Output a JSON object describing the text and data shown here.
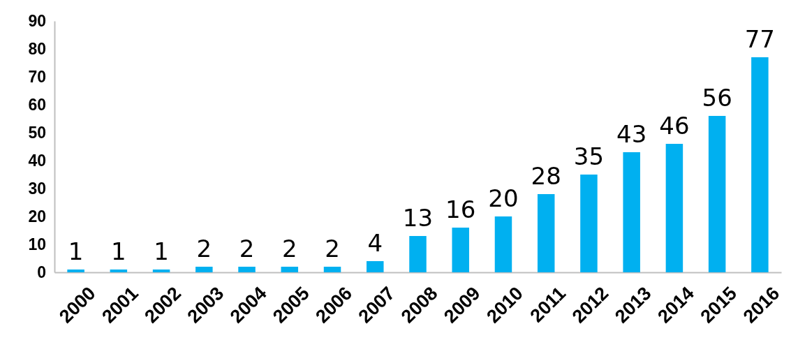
{
  "chart_data": {
    "type": "bar",
    "categories": [
      "2000",
      "2001",
      "2002",
      "2003",
      "2004",
      "2005",
      "2006",
      "2007",
      "2008",
      "2009",
      "2010",
      "2011",
      "2012",
      "2013",
      "2014",
      "2015",
      "2016"
    ],
    "values": [
      1,
      1,
      1,
      2,
      2,
      2,
      2,
      4,
      13,
      16,
      20,
      28,
      35,
      43,
      46,
      56,
      77
    ],
    "color": "#00b0f0",
    "ylim": [
      0,
      90
    ],
    "yticks": [
      0,
      10,
      20,
      30,
      40,
      50,
      60,
      70,
      80,
      90
    ],
    "data_labels": true
  }
}
